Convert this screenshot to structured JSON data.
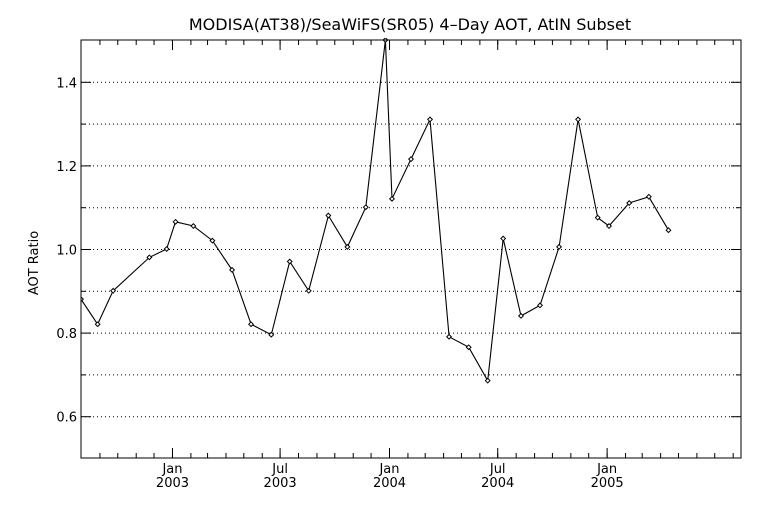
{
  "chart_data": {
    "type": "line",
    "title": "MODISA(AT38)/SeaWiFS(SR05) 4–Day AOT, AtIN Subset",
    "xlabel": "",
    "ylabel": "AOT Ratio",
    "xlim": [
      "2002-08-01",
      "2005-08-15"
    ],
    "ylim": [
      0.5,
      1.5
    ],
    "grid": true,
    "yticks": [
      0.6,
      0.8,
      1.0,
      1.2,
      1.4
    ],
    "ytick_labels": [
      "0.6",
      "0.8",
      "1.0",
      "1.2",
      "1.4"
    ],
    "minor_yticks": [
      0.5,
      0.7,
      0.9,
      1.1,
      1.3,
      1.5
    ],
    "xticks": [
      {
        "date": "2003-01-01",
        "top": "Jan",
        "bottom": "2003"
      },
      {
        "date": "2003-07-01",
        "top": "Jul",
        "bottom": "2003"
      },
      {
        "date": "2004-01-01",
        "top": "Jan",
        "bottom": "2004"
      },
      {
        "date": "2004-07-01",
        "top": "Jul",
        "bottom": "2004"
      },
      {
        "date": "2005-01-01",
        "top": "Jan",
        "bottom": "2005"
      }
    ],
    "series": [
      {
        "points": [
          {
            "x": "2002-08-01",
            "y": 0.88
          },
          {
            "x": "2002-08-29",
            "y": 0.82
          },
          {
            "x": "2002-09-24",
            "y": 0.9
          },
          {
            "x": "2002-11-24",
            "y": 0.98
          },
          {
            "x": "2002-12-23",
            "y": 1.0
          },
          {
            "x": "2003-01-07",
            "y": 1.065
          },
          {
            "x": "2003-02-06",
            "y": 1.055
          },
          {
            "x": "2003-03-10",
            "y": 1.02
          },
          {
            "x": "2003-04-12",
            "y": 0.95
          },
          {
            "x": "2003-05-14",
            "y": 0.82
          },
          {
            "x": "2003-06-17",
            "y": 0.795
          },
          {
            "x": "2003-07-18",
            "y": 0.97
          },
          {
            "x": "2003-08-19",
            "y": 0.9
          },
          {
            "x": "2003-09-21",
            "y": 1.08
          },
          {
            "x": "2003-10-23",
            "y": 1.005
          },
          {
            "x": "2003-11-23",
            "y": 1.1
          },
          {
            "x": "2003-12-26",
            "y": 1.5
          },
          {
            "x": "2004-01-06",
            "y": 1.12
          },
          {
            "x": "2004-02-07",
            "y": 1.215
          },
          {
            "x": "2004-03-10",
            "y": 1.31
          },
          {
            "x": "2004-04-11",
            "y": 0.79
          },
          {
            "x": "2004-05-14",
            "y": 0.765
          },
          {
            "x": "2004-06-15",
            "y": 0.685
          },
          {
            "x": "2004-07-11",
            "y": 1.025
          },
          {
            "x": "2004-08-10",
            "y": 0.84
          },
          {
            "x": "2004-09-11",
            "y": 0.865
          },
          {
            "x": "2004-10-13",
            "y": 1.005
          },
          {
            "x": "2004-11-14",
            "y": 1.31
          },
          {
            "x": "2004-12-17",
            "y": 1.075
          },
          {
            "x": "2005-01-05",
            "y": 1.055
          },
          {
            "x": "2005-02-08",
            "y": 1.11
          },
          {
            "x": "2005-03-13",
            "y": 1.125
          },
          {
            "x": "2005-04-15",
            "y": 1.045
          }
        ]
      }
    ]
  }
}
